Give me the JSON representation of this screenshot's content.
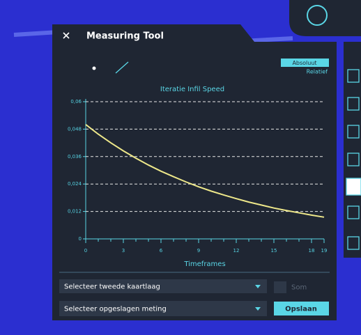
{
  "header": {
    "title": "Measuring Tool"
  },
  "mode_buttons": [
    "Absoluut",
    "Relatief"
  ],
  "chart_data": {
    "type": "line",
    "title": "Iteratie Infil Speed",
    "x_label": "Timeframes",
    "x": [
      0,
      1,
      2,
      3,
      4,
      5,
      6,
      7,
      8,
      9,
      10,
      11,
      12,
      13,
      14,
      15,
      16,
      17,
      18,
      19
    ],
    "values": [
      0.05,
      0.0458,
      0.042,
      0.0385,
      0.0353,
      0.0323,
      0.0296,
      0.0272,
      0.0249,
      0.0228,
      0.0209,
      0.0192,
      0.0176,
      0.0161,
      0.0148,
      0.0135,
      0.0124,
      0.0114,
      0.0104,
      0.0095
    ],
    "color": "#eee88a",
    "xlim": [
      0,
      19
    ],
    "xticks": [
      0,
      3,
      6,
      9,
      12,
      15,
      18,
      19
    ],
    "ylim": [
      0,
      0.06
    ],
    "yticks": [
      0,
      {
        "value": 0.012,
        "label": "0,012"
      },
      {
        "value": 0.024,
        "label": "0,024"
      },
      {
        "value": 0.036,
        "label": "0,036"
      },
      {
        "value": 0.048,
        "label": "0,048"
      },
      {
        "value": 0.06,
        "label": "0,06"
      }
    ],
    "grid": true
  },
  "controls": {
    "layer_select": "Selecteer tweede kaartlaag",
    "checkbox_label": "Som",
    "saved_select": "Selecteer opgeslagen meting",
    "save_button": "Opslaan"
  }
}
